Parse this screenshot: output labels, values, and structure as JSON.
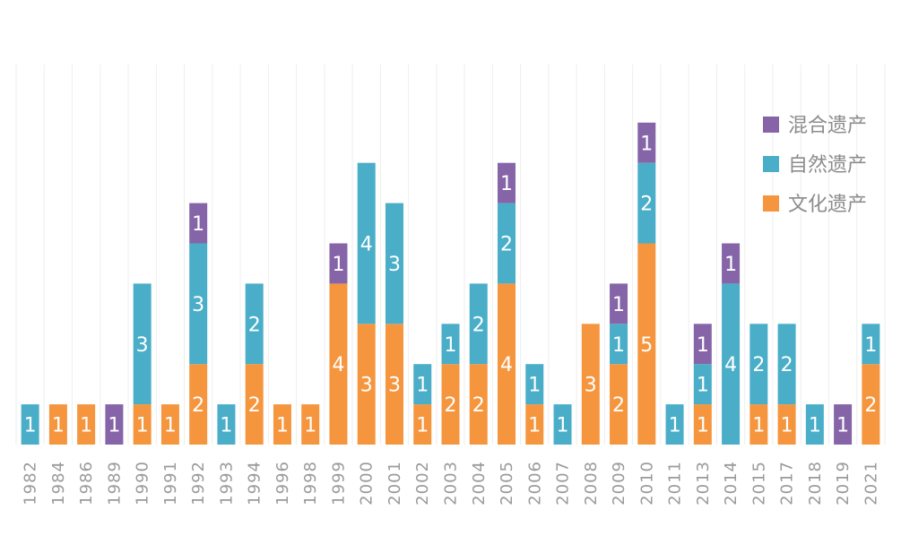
{
  "chart_data": {
    "type": "bar",
    "stacked": true,
    "categories": [
      "1982",
      "1984",
      "1986",
      "1989",
      "1990",
      "1991",
      "1992",
      "1993",
      "1994",
      "1996",
      "1998",
      "1999",
      "2000",
      "2001",
      "2002",
      "2003",
      "2004",
      "2005",
      "2006",
      "2007",
      "2008",
      "2009",
      "2010",
      "2011",
      "2013",
      "2014",
      "2015",
      "2017",
      "2018",
      "2019",
      "2021"
    ],
    "series": [
      {
        "name": "文化遗产",
        "color": "#f5963f",
        "values": [
          0,
          1,
          1,
          0,
          1,
          1,
          2,
          0,
          2,
          1,
          1,
          4,
          3,
          3,
          1,
          2,
          2,
          4,
          1,
          0,
          3,
          2,
          5,
          0,
          1,
          0,
          1,
          1,
          0,
          0,
          2
        ]
      },
      {
        "name": "自然遗产",
        "color": "#4aaec8",
        "values": [
          1,
          0,
          0,
          0,
          3,
          0,
          3,
          1,
          2,
          0,
          0,
          0,
          4,
          3,
          1,
          1,
          2,
          2,
          1,
          1,
          0,
          1,
          2,
          1,
          1,
          4,
          2,
          2,
          1,
          0,
          1
        ]
      },
      {
        "name": "混合遗产",
        "color": "#8565a8",
        "values": [
          0,
          0,
          0,
          1,
          0,
          0,
          1,
          0,
          0,
          0,
          0,
          1,
          0,
          0,
          0,
          0,
          0,
          1,
          0,
          0,
          0,
          1,
          1,
          0,
          1,
          1,
          0,
          0,
          0,
          1,
          0
        ]
      }
    ],
    "legend_order": [
      "混合遗产",
      "自然遗产",
      "文化遗产"
    ],
    "legend_position": "top-right",
    "ylim": [
      0,
      9
    ],
    "grid": "vertical",
    "data_labels": true
  }
}
